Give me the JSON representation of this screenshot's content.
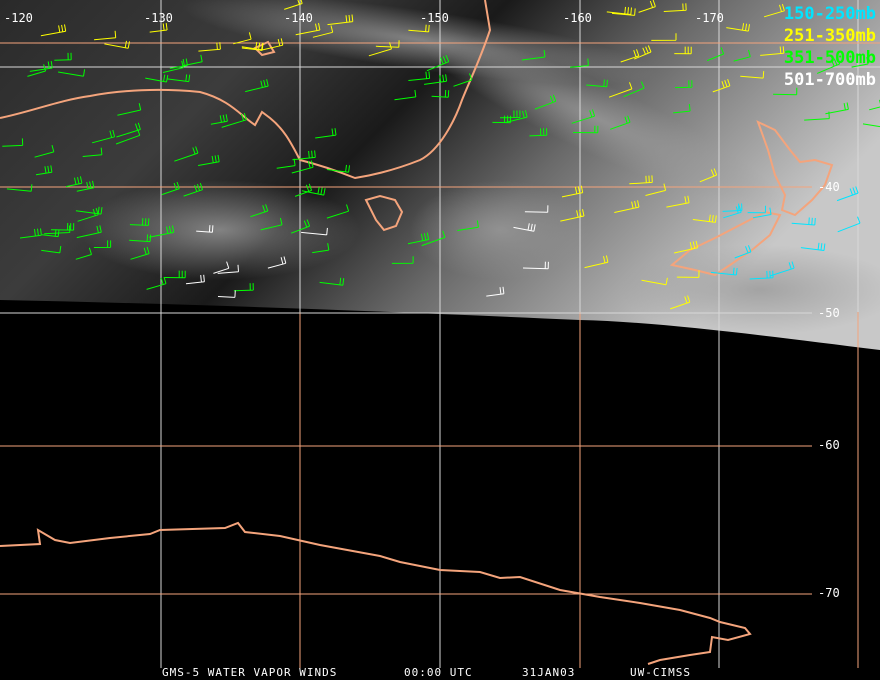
{
  "title_bar": {
    "product": "GMS-5 WATER VAPOR WINDS",
    "time": "00:00 UTC",
    "date": "31JAN03",
    "credit": "UW-CIMSS"
  },
  "legend": [
    {
      "label": "150-250mb",
      "color": "#00e5ff"
    },
    {
      "label": "251-350mb",
      "color": "#ffff00"
    },
    {
      "label": "351-500mb",
      "color": "#00ff00"
    },
    {
      "label": "501-700mb",
      "color": "#ffffff"
    }
  ],
  "longitude_labels": [
    "-120",
    "-130",
    "-140",
    "-150",
    "-160",
    "-170"
  ],
  "latitude_labels": [
    "-40",
    "-50",
    "-60",
    "-70"
  ],
  "colors": {
    "coastline": "#f4a47c",
    "grid": "#f4a47c",
    "background": "#000000"
  }
}
